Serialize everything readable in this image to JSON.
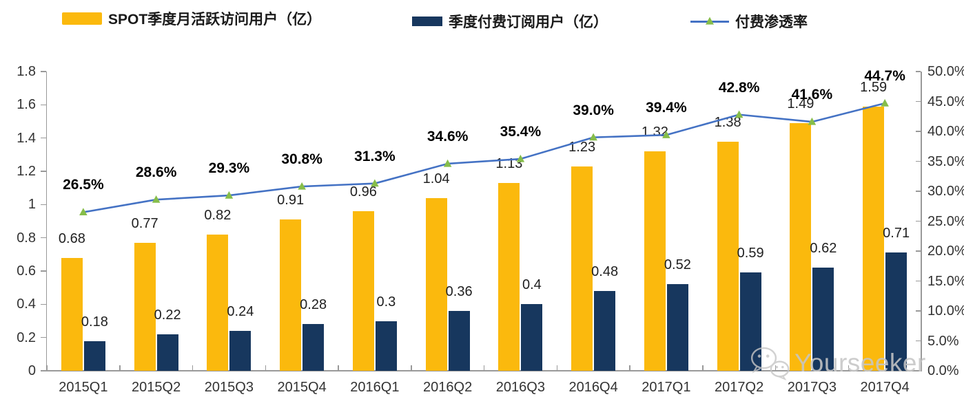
{
  "legend": [
    {
      "label": "SPOT季度月活跃访问用户（亿）",
      "type": "bar",
      "color": "#FBB90D"
    },
    {
      "label": "季度付费订阅用户（亿）",
      "type": "bar",
      "color": "#17375E"
    },
    {
      "label": "付费渗透率",
      "type": "line",
      "color": "#4472C4",
      "marker_color": "#86BD4A"
    }
  ],
  "chart_data": {
    "type": "bar+line",
    "categories": [
      "2015Q1",
      "2015Q2",
      "2015Q3",
      "2015Q4",
      "2016Q1",
      "2016Q2",
      "2016Q3",
      "2016Q4",
      "2017Q1",
      "2017Q2",
      "2017Q3",
      "2017Q4"
    ],
    "series": [
      {
        "name": "SPOT季度月活跃访问用户（亿）",
        "type": "bar",
        "axis": "left",
        "color": "#FBB90D",
        "values": [
          0.68,
          0.77,
          0.82,
          0.91,
          0.96,
          1.04,
          1.13,
          1.23,
          1.32,
          1.38,
          1.49,
          1.59
        ],
        "labels": [
          "0.68",
          "0.77",
          "0.82",
          "0.91",
          "0.96",
          "1.04",
          "1.13",
          "1.23",
          "1.32",
          "1.38",
          "1.49",
          "1.59"
        ]
      },
      {
        "name": "季度付费订阅用户（亿）",
        "type": "bar",
        "axis": "left",
        "color": "#17375E",
        "values": [
          0.18,
          0.22,
          0.24,
          0.28,
          0.3,
          0.36,
          0.4,
          0.48,
          0.52,
          0.59,
          0.62,
          0.71
        ],
        "labels": [
          "0.18",
          "0.22",
          "0.24",
          "0.28",
          "0.3",
          "0.36",
          "0.4",
          "0.48",
          "0.52",
          "0.59",
          "0.62",
          "0.71"
        ]
      },
      {
        "name": "付费渗透率",
        "type": "line",
        "axis": "right",
        "color": "#4472C4",
        "marker_color": "#86BD4A",
        "values": [
          26.5,
          28.6,
          29.3,
          30.8,
          31.3,
          34.6,
          35.4,
          39.0,
          39.4,
          42.8,
          41.6,
          44.7
        ],
        "labels": [
          "26.5%",
          "28.6%",
          "29.3%",
          "30.8%",
          "31.3%",
          "34.6%",
          "35.4%",
          "39.0%",
          "39.4%",
          "42.8%",
          "41.6%",
          "44.7%"
        ]
      }
    ],
    "left_axis": {
      "min": 0,
      "max": 1.8,
      "ticks": [
        "0",
        "0.2",
        "0.4",
        "0.6",
        "0.8",
        "1",
        "1.2",
        "1.4",
        "1.6",
        "1.8"
      ]
    },
    "right_axis": {
      "min": 0,
      "max": 50,
      "ticks": [
        "0.0%",
        "5.0%",
        "10.0%",
        "15.0%",
        "20.0%",
        "25.0%",
        "30.0%",
        "35.0%",
        "40.0%",
        "45.0%",
        "50.0%"
      ]
    },
    "title": "",
    "grid": false,
    "legend_position": "top"
  },
  "colors": {
    "axis": "#999999",
    "watermark": "#C6C6C6"
  },
  "watermark": {
    "text": "Yourseeker",
    "icon": "wechat-icon"
  }
}
